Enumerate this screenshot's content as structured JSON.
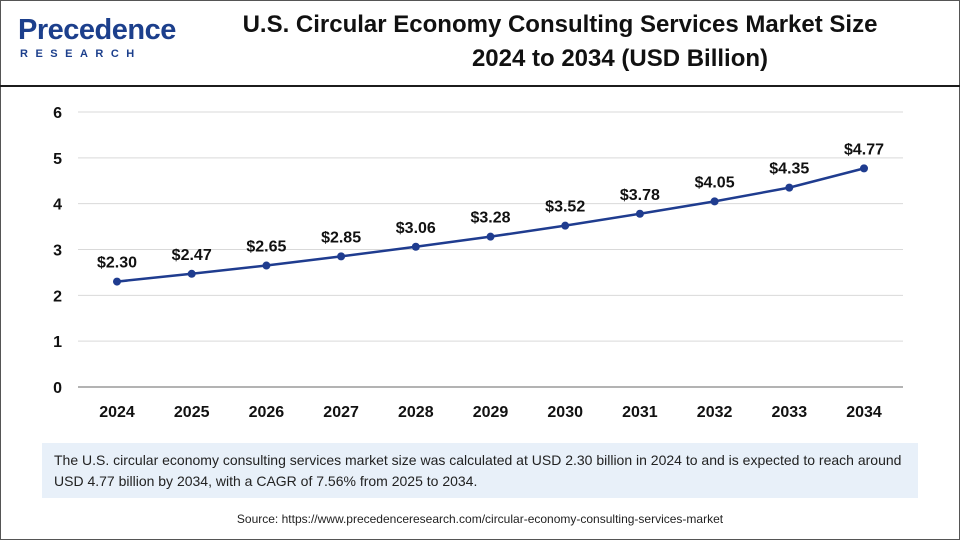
{
  "logo": {
    "name": "Precedence",
    "sub": "RESEARCH"
  },
  "title": {
    "line1": "U.S. Circular Economy Consulting Services Market Size",
    "line2": "2024 to 2034 (USD Billion)"
  },
  "chart_data": {
    "type": "line",
    "title": "U.S. Circular Economy Consulting Services Market Size 2024 to 2034 (USD Billion)",
    "xlabel": "",
    "ylabel": "",
    "categories": [
      "2024",
      "2025",
      "2026",
      "2027",
      "2028",
      "2029",
      "2030",
      "2031",
      "2032",
      "2033",
      "2034"
    ],
    "series": [
      {
        "name": "Market Size (USD Billion)",
        "values": [
          2.3,
          2.47,
          2.65,
          2.85,
          3.06,
          3.28,
          3.52,
          3.78,
          4.05,
          4.35,
          4.77
        ],
        "labels": [
          "$2.30",
          "$2.47",
          "$2.65",
          "$2.85",
          "$3.06",
          "$3.28",
          "$3.52",
          "$3.78",
          "$4.05",
          "$4.35",
          "$4.77"
        ]
      }
    ],
    "ylim": [
      0,
      6
    ],
    "yticks": [
      0,
      1,
      2,
      3,
      4,
      5,
      6
    ],
    "grid": true,
    "line_color": "#1f3c8f"
  },
  "description": "The U.S. circular economy consulting services market size was calculated at USD 2.30 billion in 2024 to and is expected to reach around USD 4.77 billion by 2034, with a CAGR of 7.56% from 2025 to 2034.",
  "source": "Source: https://www.precedenceresearch.com/circular-economy-consulting-services-market"
}
